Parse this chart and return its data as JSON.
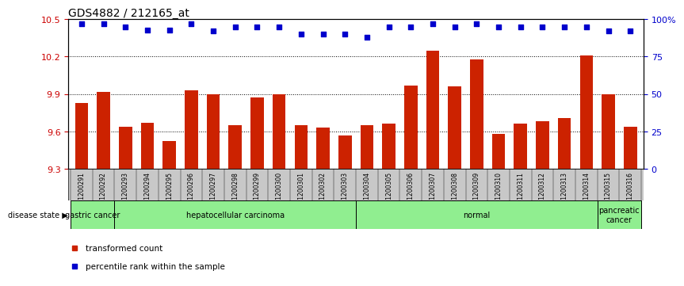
{
  "title": "GDS4882 / 212165_at",
  "samples": [
    "GSM1200291",
    "GSM1200292",
    "GSM1200293",
    "GSM1200294",
    "GSM1200295",
    "GSM1200296",
    "GSM1200297",
    "GSM1200298",
    "GSM1200299",
    "GSM1200300",
    "GSM1200301",
    "GSM1200302",
    "GSM1200303",
    "GSM1200304",
    "GSM1200305",
    "GSM1200306",
    "GSM1200307",
    "GSM1200308",
    "GSM1200309",
    "GSM1200310",
    "GSM1200311",
    "GSM1200312",
    "GSM1200313",
    "GSM1200314",
    "GSM1200315",
    "GSM1200316"
  ],
  "red_values": [
    9.83,
    9.92,
    9.64,
    9.67,
    9.52,
    9.93,
    9.9,
    9.65,
    9.87,
    9.9,
    9.65,
    9.63,
    9.57,
    9.65,
    9.66,
    9.97,
    10.25,
    9.96,
    10.18,
    9.58,
    9.66,
    9.68,
    9.71,
    10.21,
    9.9,
    9.64
  ],
  "blue_values": [
    97,
    97,
    95,
    93,
    93,
    97,
    92,
    95,
    95,
    95,
    90,
    90,
    90,
    88,
    95,
    95,
    97,
    95,
    97,
    95,
    95,
    95,
    95,
    95,
    92,
    92
  ],
  "disease_groups": [
    {
      "label": "gastric cancer",
      "start": 0,
      "end": 2
    },
    {
      "label": "hepatocellular carcinoma",
      "start": 2,
      "end": 13
    },
    {
      "label": "normal",
      "start": 13,
      "end": 24
    },
    {
      "label": "pancreatic\ncancer",
      "start": 24,
      "end": 26
    }
  ],
  "ylim_left": [
    9.3,
    10.5
  ],
  "ylim_right": [
    0,
    100
  ],
  "yticks_left": [
    9.3,
    9.6,
    9.9,
    10.2,
    10.5
  ],
  "yticks_right": [
    0,
    25,
    50,
    75,
    100
  ],
  "bar_color": "#CC2200",
  "dot_color": "#0000CC",
  "xlabel_color": "#CC0000",
  "ylabel_right_color": "#0000CC",
  "green_light": "#90EE90",
  "gray_xband": "#C8C8C8"
}
